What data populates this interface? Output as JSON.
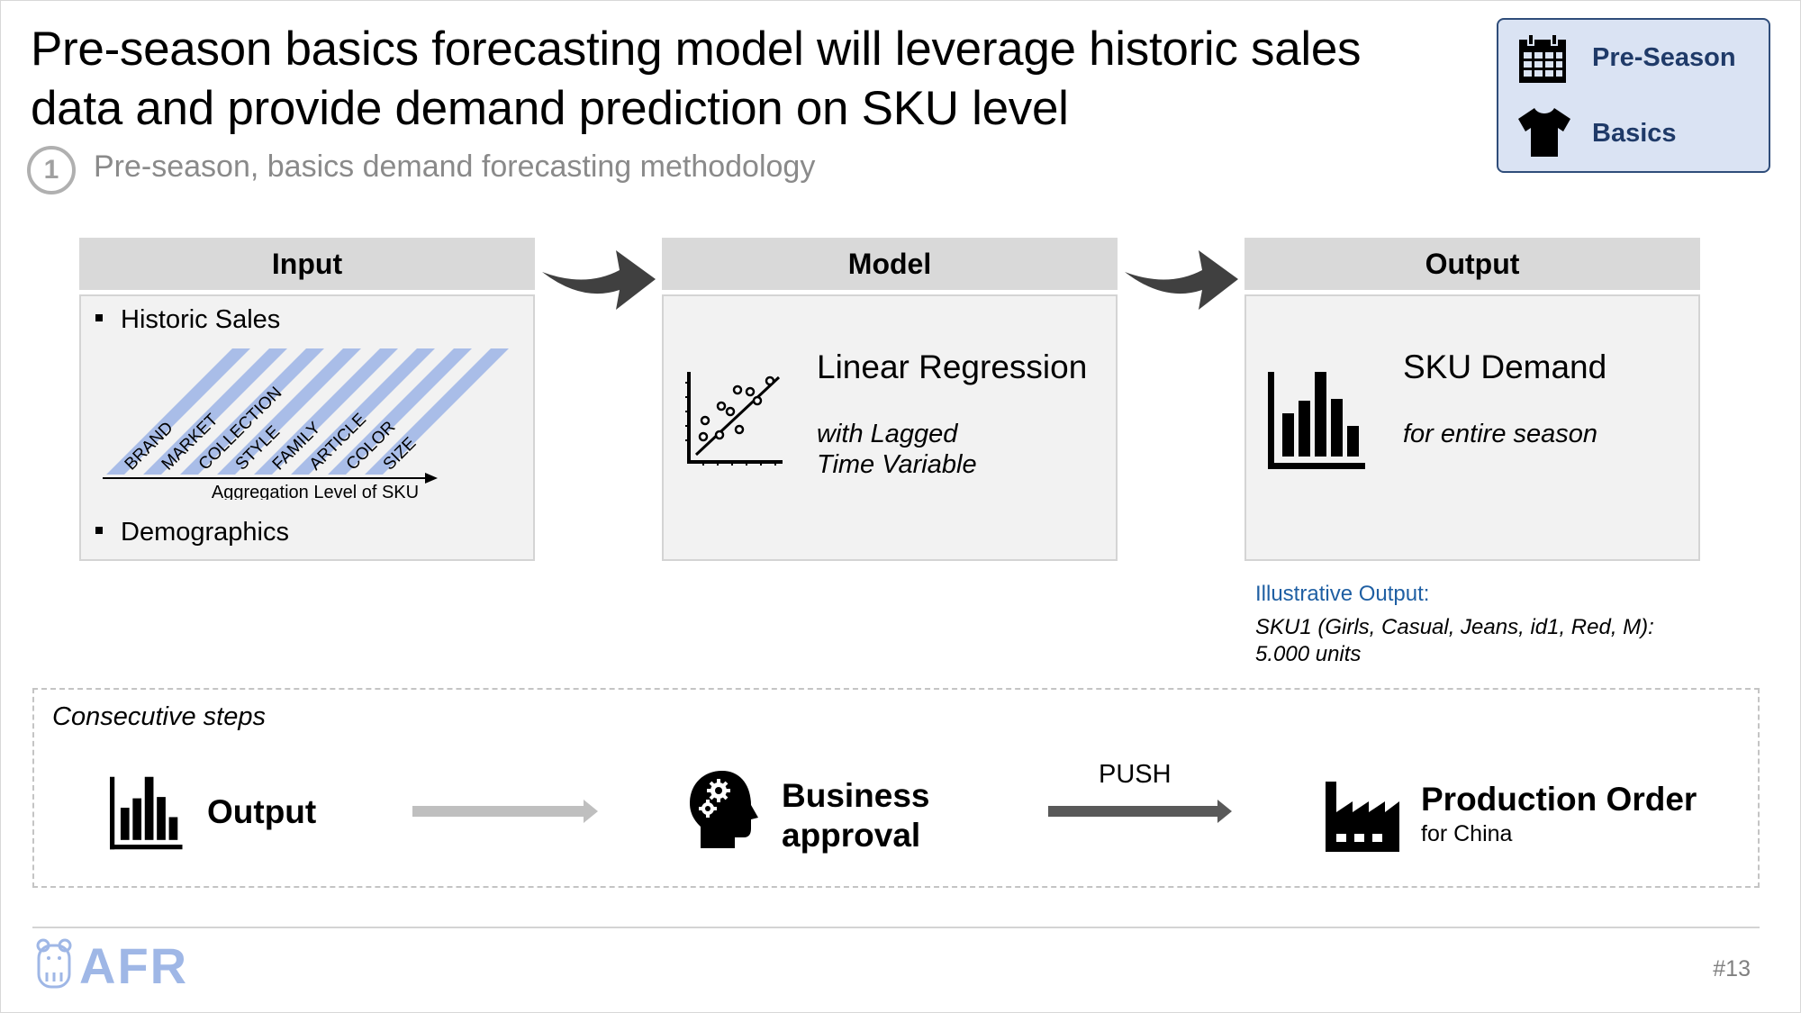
{
  "header": {
    "title_line1": "Pre-season basics forecasting model will leverage historic sales",
    "title_line2": "data and provide demand prediction on SKU level",
    "section_number": "1",
    "subtitle": "Pre-season, basics demand forecasting methodology"
  },
  "badge": {
    "item1": {
      "label": "Pre-Season",
      "icon": "calendar-icon"
    },
    "item2": {
      "label": "Basics",
      "icon": "tshirt-icon"
    },
    "background": "#dae3f3",
    "border": "#2f4d7a"
  },
  "input": {
    "header": "Input",
    "bullet1": "Historic Sales",
    "levels": [
      "BRAND",
      "MARKET",
      "COLLECTION",
      "STYLE",
      "FAMILY",
      "ARTICLE",
      "COLOR",
      "SIZE"
    ],
    "axis_label": "Aggregation Level of SKU",
    "bullet2": "Demographics",
    "stripe_color": "#a9bde8"
  },
  "model": {
    "header": "Model",
    "title": "Linear Regression",
    "sub_line1": "with Lagged",
    "sub_line2": "Time Variable",
    "icon": "scatter-plot-icon"
  },
  "output": {
    "header": "Output",
    "title": "SKU Demand",
    "sub": "for entire season",
    "icon": "bar-chart-icon"
  },
  "illustrative": {
    "heading": "Illustrative Output:",
    "line1": "SKU1 (Girls, Casual, Jeans, id1, Red, M):",
    "line2": "5.000 units"
  },
  "steps": {
    "title": "Consecutive steps",
    "step1": "Output",
    "step2_line1": "Business",
    "step2_line2": "approval",
    "push": "PUSH",
    "step3": "Production Order",
    "step3_sub": "for China"
  },
  "footer": {
    "logo": "AFR",
    "page": "#13"
  }
}
